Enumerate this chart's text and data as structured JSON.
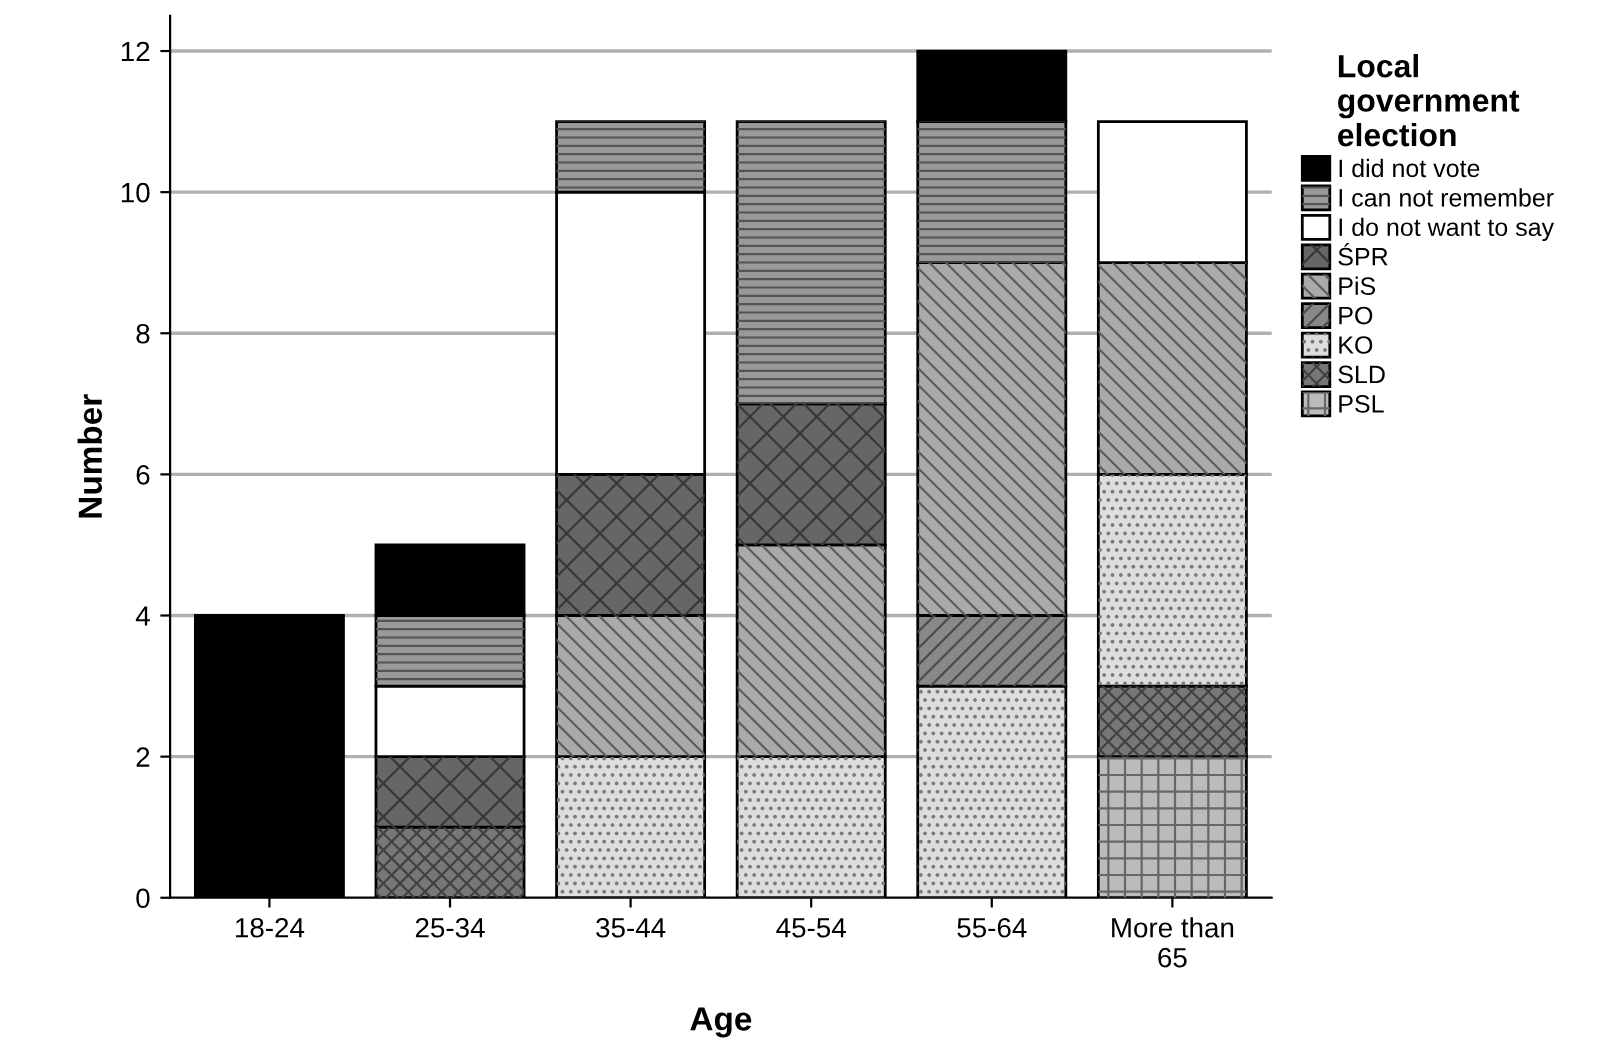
{
  "chart_data": {
    "type": "bar",
    "stacked": true,
    "xlabel": "Age",
    "ylabel": "Number",
    "legend_title": "Local\ngovernment\nelection",
    "legend": "top right",
    "grid": "y",
    "categories": [
      "18-24",
      "25-34",
      "35-44",
      "45-54",
      "55-64",
      "More than\n65"
    ],
    "ylim": [
      0,
      12.5
    ],
    "yticks": [
      0,
      2,
      4,
      6,
      8,
      10,
      12
    ],
    "series": [
      {
        "name": "PSL",
        "color": "#bbbbbb",
        "values": [
          0,
          0,
          0,
          0,
          0,
          2
        ]
      },
      {
        "name": "SLD",
        "color": "#777777",
        "values": [
          0,
          1,
          0,
          0,
          0,
          1
        ]
      },
      {
        "name": "KO",
        "color": "#dddddd",
        "values": [
          0,
          0,
          2,
          2,
          3,
          3
        ]
      },
      {
        "name": "PO",
        "color": "#888888",
        "values": [
          0,
          0,
          0,
          0,
          1,
          0
        ]
      },
      {
        "name": "PiS",
        "color": "#aaaaaa",
        "values": [
          0,
          0,
          2,
          3,
          5,
          3
        ]
      },
      {
        "name": "ŚPR",
        "color": "#666666",
        "values": [
          0,
          1,
          2,
          2,
          0,
          0
        ]
      },
      {
        "name": "I do not want to say",
        "color": "#ffffff",
        "values": [
          0,
          1,
          4,
          0,
          0,
          2
        ]
      },
      {
        "name": "I can not remember",
        "color": "#999999",
        "values": [
          0,
          1,
          1,
          4,
          2,
          0
        ]
      },
      {
        "name": "I did not vote",
        "color": "#000000",
        "values": [
          4,
          1,
          0,
          0,
          1,
          0
        ]
      }
    ]
  }
}
